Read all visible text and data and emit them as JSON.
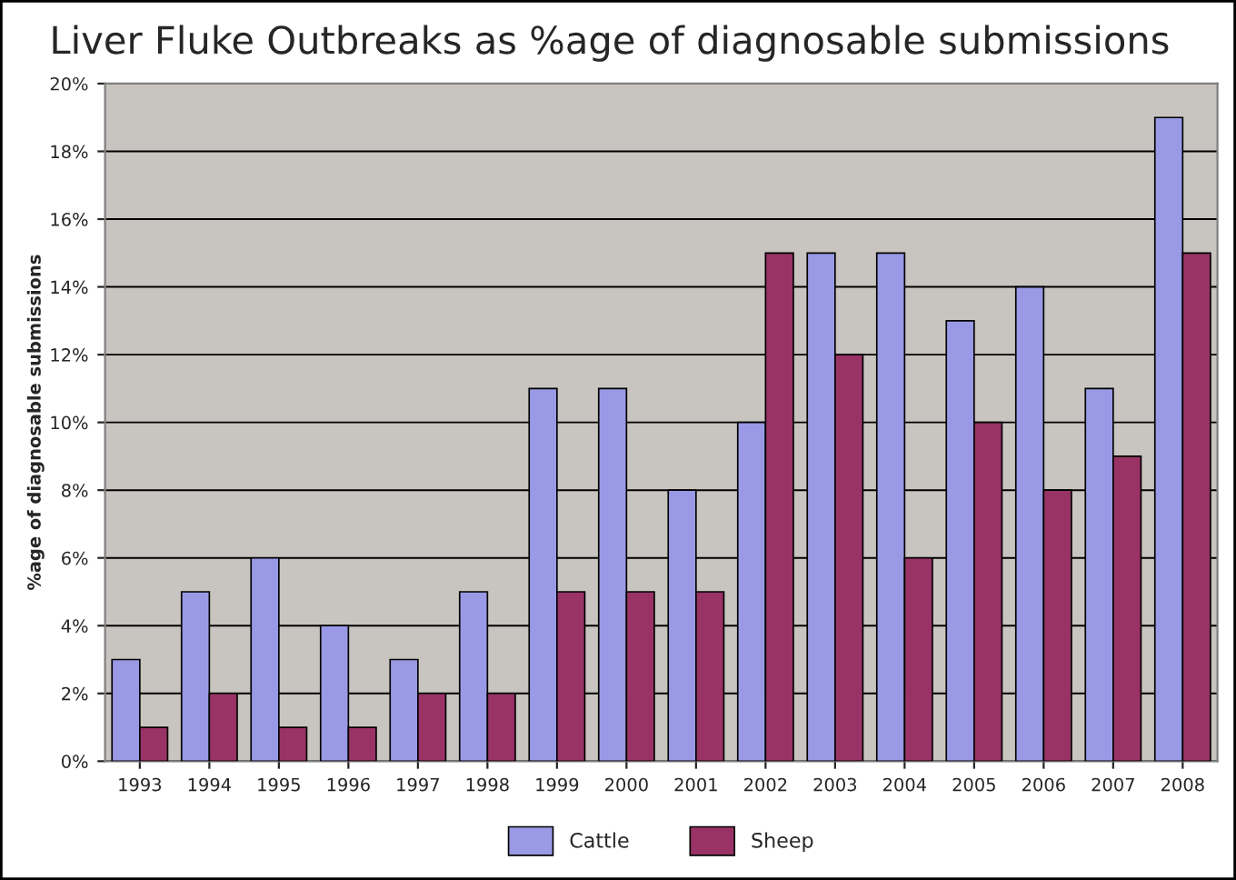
{
  "chart_data": {
    "type": "bar",
    "title": "Liver Fluke Outbreaks as %age of diagnosable submissions",
    "ylabel": "%age of diagnosable submissions",
    "categories": [
      "1993",
      "1994",
      "1995",
      "1996",
      "1997",
      "1998",
      "1999",
      "2000",
      "2001",
      "2002",
      "2003",
      "2004",
      "2005",
      "2006",
      "2007",
      "2008"
    ],
    "series": [
      {
        "name": "Cattle",
        "color": "#9999e6",
        "values": [
          3,
          5,
          6,
          4,
          3,
          5,
          11,
          11,
          8,
          10,
          15,
          15,
          13,
          14,
          11,
          19
        ]
      },
      {
        "name": "Sheep",
        "color": "#993366",
        "values": [
          1,
          2,
          1,
          1,
          2,
          2,
          5,
          5,
          5,
          15,
          12,
          6,
          10,
          8,
          9,
          15
        ]
      }
    ],
    "ylim": [
      0,
      20
    ],
    "yticks": [
      {
        "value": 0,
        "label": "0%"
      },
      {
        "value": 2,
        "label": "2%"
      },
      {
        "value": 4,
        "label": "4%"
      },
      {
        "value": 6,
        "label": "6%"
      },
      {
        "value": 8,
        "label": "8%"
      },
      {
        "value": 10,
        "label": "10%"
      },
      {
        "value": 12,
        "label": "12%"
      },
      {
        "value": 14,
        "label": "14%"
      },
      {
        "value": 16,
        "label": "16%"
      },
      {
        "value": 18,
        "label": "18%"
      },
      {
        "value": 20,
        "label": "20%"
      }
    ],
    "grid": "y",
    "legend": "bottom"
  }
}
